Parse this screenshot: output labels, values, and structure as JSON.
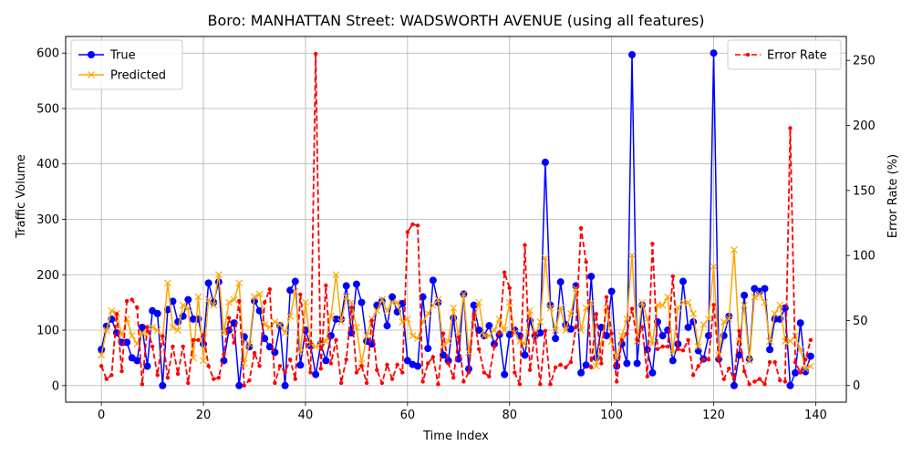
{
  "chart_data": {
    "type": "line",
    "title": "Boro: MANHATTAN Street: WADSWORTH AVENUE (using all features)",
    "xlabel": "Time Index",
    "ylabel": "Traffic Volume",
    "y2label": "Error Rate (%)",
    "xlim": [
      -7,
      146
    ],
    "ylim": [
      -30,
      630
    ],
    "y2lim": [
      -12.8,
      268.4
    ],
    "xticks": [
      0,
      20,
      40,
      60,
      80,
      100,
      120,
      140
    ],
    "yticks": [
      0,
      100,
      200,
      300,
      400,
      500,
      600
    ],
    "y2ticks": [
      0,
      50,
      100,
      150,
      200,
      250
    ],
    "grid": true,
    "legend_left_placement": "upper-left",
    "legend_right_placement": "upper-right",
    "series": [
      {
        "name": "True",
        "axis": "left",
        "color": "#0000ff",
        "marker": "circle",
        "values": [
          65,
          107,
          120,
          95,
          78,
          78,
          50,
          45,
          105,
          35,
          135,
          130,
          0,
          137,
          152,
          115,
          125,
          155,
          120,
          120,
          75,
          185,
          150,
          187,
          45,
          100,
          113,
          0,
          88,
          70,
          153,
          135,
          85,
          70,
          60,
          108,
          0,
          172,
          188,
          37,
          100,
          72,
          20,
          75,
          45,
          90,
          120,
          120,
          180,
          95,
          183,
          150,
          80,
          75,
          145,
          152,
          108,
          160,
          133,
          148,
          45,
          38,
          35,
          160,
          67,
          190,
          150,
          55,
          45,
          122,
          48,
          165,
          30,
          145,
          100,
          90,
          108,
          75,
          92,
          20,
          92,
          100,
          90,
          55,
          117,
          90,
          95,
          403,
          145,
          85,
          187,
          110,
          102,
          180,
          23,
          37,
          197,
          50,
          105,
          90,
          170,
          35,
          75,
          40,
          597,
          40,
          145,
          65,
          23,
          115,
          90,
          100,
          45,
          75,
          188,
          105,
          115,
          63,
          48,
          90,
          600,
          48,
          90,
          125,
          0,
          55,
          163,
          48,
          175,
          170,
          175,
          65,
          120,
          120,
          140,
          0,
          23,
          113,
          25,
          53
        ]
      },
      {
        "name": "Predicted",
        "axis": "left",
        "color": "#ffa500",
        "marker": "x",
        "values": [
          55,
          100,
          135,
          130,
          90,
          120,
          90,
          75,
          95,
          95,
          105,
          100,
          85,
          185,
          105,
          100,
          145,
          140,
          50,
          160,
          45,
          155,
          145,
          200,
          95,
          150,
          155,
          185,
          40,
          75,
          160,
          165,
          110,
          105,
          115,
          110,
          95,
          125,
          170,
          60,
          150,
          75,
          70,
          75,
          80,
          125,
          200,
          115,
          160,
          150,
          105,
          40,
          90,
          120,
          135,
          155,
          135,
          150,
          150,
          115,
          120,
          90,
          85,
          115,
          130,
          145,
          155,
          70,
          80,
          140,
          90,
          165,
          60,
          120,
          150,
          90,
          90,
          100,
          120,
          100,
          150,
          95,
          80,
          75,
          135,
          90,
          115,
          230,
          140,
          100,
          140,
          100,
          130,
          175,
          100,
          140,
          150,
          35,
          75,
          140,
          80,
          50,
          90,
          120,
          235,
          80,
          150,
          120,
          75,
          145,
          145,
          160,
          60,
          140,
          150,
          150,
          130,
          70,
          110,
          120,
          215,
          55,
          115,
          120,
          245,
          80,
          145,
          45,
          160,
          165,
          150,
          80,
          130,
          145,
          80,
          80,
          90,
          65,
          30,
          35
        ]
      },
      {
        "name": "Error Rate",
        "axis": "right",
        "color": "#ff0000",
        "marker": "dot",
        "linestyle": "dashed",
        "values": [
          15,
          5,
          8,
          55,
          11,
          65,
          66,
          60,
          1,
          45,
          30,
          8,
          38,
          6,
          30,
          9,
          30,
          2,
          35,
          35,
          39,
          15,
          5,
          6,
          24,
          52,
          33,
          65,
          0,
          4,
          25,
          15,
          64,
          74,
          2,
          15,
          10,
          20,
          5,
          70,
          35,
          10,
          255,
          13,
          77,
          17,
          35,
          2,
          20,
          60,
          10,
          15,
          2,
          50,
          12,
          2,
          16,
          5,
          16,
          10,
          118,
          124,
          123,
          3,
          17,
          22,
          1,
          40,
          17,
          6,
          37,
          3,
          10,
          55,
          28,
          10,
          7,
          30,
          40,
          87,
          75,
          10,
          1,
          108,
          12,
          40,
          1,
          42,
          1,
          14,
          16,
          14,
          18,
          45,
          121,
          95,
          14,
          55,
          17,
          68,
          40,
          3,
          35,
          40,
          59,
          35,
          45,
          7,
          109,
          28,
          30,
          30,
          84,
          28,
          27,
          35,
          8,
          15,
          20,
          20,
          62,
          20,
          5,
          13,
          5,
          42,
          11,
          1,
          3,
          5,
          1,
          18,
          18,
          4,
          3,
          198,
          18,
          10,
          20,
          35
        ]
      }
    ]
  }
}
